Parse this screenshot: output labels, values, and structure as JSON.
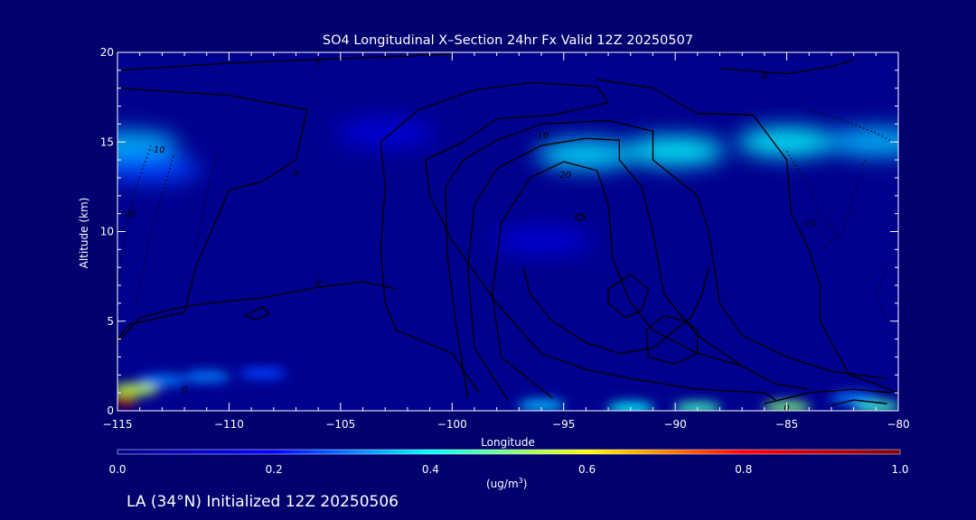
{
  "chart_data": {
    "type": "heatmap",
    "title": "SO4 Longitudinal X–Section 24hr  Fx Valid 12Z 20250507",
    "xlabel": "Longitude",
    "ylabel": "Altitude (km)",
    "xlim": [
      -115,
      -80
    ],
    "ylim": [
      0,
      20
    ],
    "x_ticks": [
      -115,
      -110,
      -105,
      -100,
      -95,
      -90,
      -85,
      -80
    ],
    "x_tick_labels": [
      "−115",
      "−110",
      "−105",
      "−100",
      "−95",
      "−90",
      "−85",
      "−80"
    ],
    "y_ticks": [
      0,
      5,
      10,
      15,
      20
    ],
    "y_tick_labels": [
      "0",
      "5",
      "10",
      "15",
      "20"
    ],
    "colorbar": {
      "min": 0.0,
      "max": 1.0,
      "ticks": [
        0.0,
        0.2,
        0.4,
        0.6,
        0.8,
        1.0
      ],
      "tick_labels": [
        "0.0",
        "0.2",
        "0.4",
        "0.6",
        "0.8",
        "1.0"
      ],
      "unit_text": "(ug/m",
      "unit_sup": "3",
      "unit_close": ")",
      "colormap": [
        "#00008f",
        "#0000ff",
        "#00ffff",
        "#ffff00",
        "#ff0000",
        "#800000"
      ]
    },
    "concentration_features": [
      {
        "lon": -114.5,
        "alt": 14.8,
        "value": 0.35
      },
      {
        "lon": -113.5,
        "alt": 13.5,
        "value": 0.25
      },
      {
        "lon": -94.0,
        "alt": 14.3,
        "value": 0.38
      },
      {
        "lon": -90.0,
        "alt": 14.5,
        "value": 0.4
      },
      {
        "lon": -85.0,
        "alt": 15.0,
        "value": 0.4
      },
      {
        "lon": -81.0,
        "alt": 15.0,
        "value": 0.35
      },
      {
        "lon": -103.0,
        "alt": 15.5,
        "value": 0.14
      },
      {
        "lon": -96.0,
        "alt": 9.5,
        "value": 0.13
      },
      {
        "lon": -114.7,
        "alt": 0.6,
        "value": 0.95
      },
      {
        "lon": -114.2,
        "alt": 1.2,
        "value": 0.55
      },
      {
        "lon": -113.0,
        "alt": 1.7,
        "value": 0.3
      },
      {
        "lon": -111.0,
        "alt": 1.9,
        "value": 0.3
      },
      {
        "lon": -108.5,
        "alt": 2.1,
        "value": 0.25
      },
      {
        "lon": -96.0,
        "alt": 0.3,
        "value": 0.35
      },
      {
        "lon": -92.0,
        "alt": 0.15,
        "value": 0.4
      },
      {
        "lon": -89.0,
        "alt": 0.15,
        "value": 0.45
      },
      {
        "lon": -85.0,
        "alt": 0.2,
        "value": 0.5
      },
      {
        "lon": -81.0,
        "alt": 0.25,
        "value": 0.45
      },
      {
        "lon": -82.0,
        "alt": 0.7,
        "value": 0.3
      }
    ],
    "contour_labels": [
      {
        "text": "0",
        "lon": -106.0,
        "alt": 19.5
      },
      {
        "text": "0",
        "lon": -86.0,
        "alt": 18.7
      },
      {
        "text": "-10",
        "lon": -113.2,
        "alt": 14.6
      },
      {
        "text": "0",
        "lon": -107.0,
        "alt": 13.3
      },
      {
        "text": "-10",
        "lon": -96.0,
        "alt": 15.4
      },
      {
        "text": "-20",
        "lon": -95.0,
        "alt": 13.2
      },
      {
        "text": "-20",
        "lon": -114.5,
        "alt": 11.0
      },
      {
        "text": "0",
        "lon": -106.0,
        "alt": 7.2
      },
      {
        "text": "-10",
        "lon": -84.0,
        "alt": 10.5
      },
      {
        "text": "0",
        "lon": -112.0,
        "alt": 1.2
      },
      {
        "text": "0",
        "lon": -85.0,
        "alt": 0.2
      }
    ],
    "contours": [
      {
        "style": "solid",
        "points": [
          [
            -115,
            19.0
          ],
          [
            -110,
            19.4
          ],
          [
            -104,
            19.7
          ],
          [
            -100,
            19.9
          ]
        ]
      },
      {
        "style": "solid",
        "points": [
          [
            -88,
            19.1
          ],
          [
            -85,
            18.8
          ],
          [
            -83,
            19.2
          ],
          [
            -82,
            19.6
          ]
        ]
      },
      {
        "style": "solid",
        "points": [
          [
            -115,
            18.0
          ],
          [
            -110,
            17.6
          ],
          [
            -106.5,
            16.8
          ],
          [
            -107,
            14.0
          ],
          [
            -108.5,
            12.8
          ],
          [
            -110,
            12.3
          ],
          [
            -111.5,
            8.0
          ],
          [
            -112,
            5.5
          ],
          [
            -114.5,
            4.8
          ],
          [
            -115,
            4.0
          ]
        ]
      },
      {
        "style": "solid",
        "points": [
          [
            -115,
            3.8
          ],
          [
            -114,
            5.2
          ],
          [
            -112.5,
            5.7
          ],
          [
            -111,
            6.0
          ],
          [
            -108.5,
            6.3
          ],
          [
            -106,
            6.9
          ],
          [
            -104,
            7.2
          ],
          [
            -102.5,
            6.8
          ]
        ]
      },
      {
        "style": "solid",
        "points": [
          [
            -98.8,
            1.0
          ],
          [
            -100,
            3.2
          ],
          [
            -102.5,
            4.5
          ],
          [
            -103,
            6.0
          ],
          [
            -103.2,
            9.0
          ],
          [
            -103,
            12.5
          ],
          [
            -103.2,
            15.0
          ],
          [
            -101.5,
            16.8
          ],
          [
            -99,
            17.9
          ],
          [
            -96.5,
            18.3
          ],
          [
            -93.5,
            18.1
          ],
          [
            -93,
            17.2
          ],
          [
            -95.5,
            16.5
          ],
          [
            -98,
            16.3
          ],
          [
            -99.5,
            15.0
          ],
          [
            -101.2,
            14.0
          ],
          [
            -101,
            12.0
          ],
          [
            -100,
            9.5
          ],
          [
            -98,
            6.0
          ],
          [
            -96,
            3.2
          ],
          [
            -94,
            2.3
          ],
          [
            -92,
            1.8
          ],
          [
            -89,
            1.2
          ],
          [
            -86,
            1.0
          ],
          [
            -85.5,
            0.6
          ]
        ]
      },
      {
        "style": "solid",
        "points": [
          [
            -99.3,
            0.7
          ],
          [
            -99.8,
            4.6
          ],
          [
            -100.2,
            8.5
          ],
          [
            -100.3,
            12.5
          ],
          [
            -99.5,
            14.0
          ],
          [
            -98,
            15.1
          ],
          [
            -96,
            16.0
          ],
          [
            -93,
            16.2
          ],
          [
            -91,
            15.6
          ],
          [
            -91,
            14.0
          ],
          [
            -89,
            12.0
          ],
          [
            -88.5,
            10.0
          ],
          [
            -88,
            6.0
          ],
          [
            -87,
            4.2
          ],
          [
            -85,
            3.0
          ],
          [
            -83,
            2.2
          ],
          [
            -80.5,
            1.8
          ]
        ]
      },
      {
        "style": "solid",
        "points": [
          [
            -97.5,
            0.6
          ],
          [
            -99,
            3.5
          ],
          [
            -99.3,
            8.0
          ],
          [
            -99,
            11.5
          ],
          [
            -98,
            13.5
          ],
          [
            -96,
            14.8
          ],
          [
            -94,
            15.2
          ],
          [
            -92.5,
            15.1
          ],
          [
            -92.5,
            14.0
          ],
          [
            -91.5,
            12.5
          ],
          [
            -91,
            10.0
          ],
          [
            -90.5,
            6.5
          ],
          [
            -89,
            4.2
          ],
          [
            -87,
            2.5
          ],
          [
            -85.5,
            1.5
          ],
          [
            -84,
            1.2
          ]
        ]
      },
      {
        "style": "solid",
        "points": [
          [
            -95.5,
            0.7
          ],
          [
            -97.8,
            3.0
          ],
          [
            -98.2,
            6.5
          ],
          [
            -97.8,
            10.5
          ],
          [
            -96.5,
            13.0
          ],
          [
            -95,
            13.9
          ],
          [
            -93.5,
            13.4
          ],
          [
            -93,
            11.5
          ],
          [
            -92.8,
            8.5
          ],
          [
            -92,
            6.0
          ],
          [
            -91,
            4.5
          ],
          [
            -89,
            3.2
          ],
          [
            -87,
            2.5
          ]
        ]
      },
      {
        "style": "solid",
        "points": [
          [
            -92,
            7.6
          ],
          [
            -93,
            6.8
          ],
          [
            -93,
            6.0
          ],
          [
            -92.2,
            5.2
          ],
          [
            -91.5,
            5.6
          ],
          [
            -91.2,
            6.8
          ],
          [
            -92,
            7.6
          ]
        ]
      },
      {
        "style": "solid",
        "points": [
          [
            -96.8,
            8.0
          ],
          [
            -96.5,
            6.5
          ],
          [
            -95.5,
            5.0
          ],
          [
            -94,
            3.8
          ],
          [
            -92.5,
            3.2
          ],
          [
            -91,
            3.5
          ],
          [
            -90,
            4.5
          ],
          [
            -89.3,
            5.2
          ],
          [
            -88.8,
            6.5
          ],
          [
            -88.5,
            8.0
          ]
        ]
      },
      {
        "style": "solid",
        "points": [
          [
            -90.5,
            5.3
          ],
          [
            -91.3,
            4.5
          ],
          [
            -91.2,
            3.0
          ],
          [
            -90,
            2.6
          ],
          [
            -89,
            3.2
          ],
          [
            -89,
            4.5
          ],
          [
            -89.5,
            5.0
          ],
          [
            -90.5,
            5.3
          ]
        ]
      },
      {
        "style": "solid",
        "points": [
          [
            -108.8,
            5.1
          ],
          [
            -109.3,
            5.3
          ],
          [
            -108.5,
            5.8
          ],
          [
            -108.2,
            5.4
          ],
          [
            -108.8,
            5.1
          ]
        ]
      },
      {
        "style": "solid",
        "points": [
          [
            -94,
            10.8
          ],
          [
            -94.3,
            10.6
          ],
          [
            -94.5,
            10.8
          ],
          [
            -94.2,
            11.0
          ],
          [
            -94,
            10.8
          ]
        ]
      },
      {
        "style": "solid",
        "points": [
          [
            -93.5,
            18.5
          ],
          [
            -91,
            18.0
          ],
          [
            -89,
            16.6
          ],
          [
            -86.5,
            16.5
          ],
          [
            -85,
            14.0
          ],
          [
            -84.8,
            11.0
          ],
          [
            -84,
            9.0
          ],
          [
            -83.5,
            7.0
          ],
          [
            -83.5,
            5.0
          ],
          [
            -82.2,
            2.0
          ],
          [
            -81,
            1.5
          ],
          [
            -80,
            1.0
          ]
        ]
      },
      {
        "style": "solid",
        "points": [
          [
            -80.3,
            1.0
          ],
          [
            -82,
            1.2
          ],
          [
            -84,
            1.0
          ],
          [
            -86,
            0.4
          ]
        ]
      },
      {
        "style": "solid",
        "points": [
          [
            -80.5,
            0.4
          ],
          [
            -82,
            0.6
          ],
          [
            -83,
            0.3
          ]
        ]
      },
      {
        "style": "dotted",
        "points": [
          [
            -112.5,
            14.2
          ],
          [
            -113,
            12.0
          ],
          [
            -113.5,
            10.0
          ],
          [
            -113.8,
            8.0
          ],
          [
            -114.2,
            6.0
          ]
        ]
      },
      {
        "style": "dotted",
        "points": [
          [
            -113.5,
            14.8
          ],
          [
            -114.3,
            12.0
          ],
          [
            -114.7,
            9.5
          ],
          [
            -115,
            7.0
          ]
        ]
      },
      {
        "style": "dotted",
        "points": [
          [
            -110.5,
            14.5
          ],
          [
            -111,
            12.0
          ],
          [
            -111.5,
            9.0
          ]
        ]
      },
      {
        "style": "dotted",
        "points": [
          [
            -84,
            16.8
          ],
          [
            -82.5,
            16.2
          ],
          [
            -81,
            15.5
          ],
          [
            -80.2,
            15.0
          ]
        ]
      },
      {
        "style": "dotted",
        "points": [
          [
            -85,
            14.5
          ],
          [
            -84,
            12.5
          ],
          [
            -83.5,
            11.0
          ],
          [
            -82.5,
            9.5
          ]
        ]
      },
      {
        "style": "dotted",
        "points": [
          [
            -81.5,
            14.0
          ],
          [
            -82,
            12.0
          ],
          [
            -82.5,
            10.0
          ],
          [
            -83.5,
            9.0
          ]
        ]
      },
      {
        "style": "dotted",
        "points": [
          [
            -80.5,
            8.0
          ],
          [
            -81,
            6.5
          ],
          [
            -80.5,
            5.0
          ]
        ]
      }
    ]
  },
  "footer": "LA (34°N) Initialized 12Z 20250506"
}
